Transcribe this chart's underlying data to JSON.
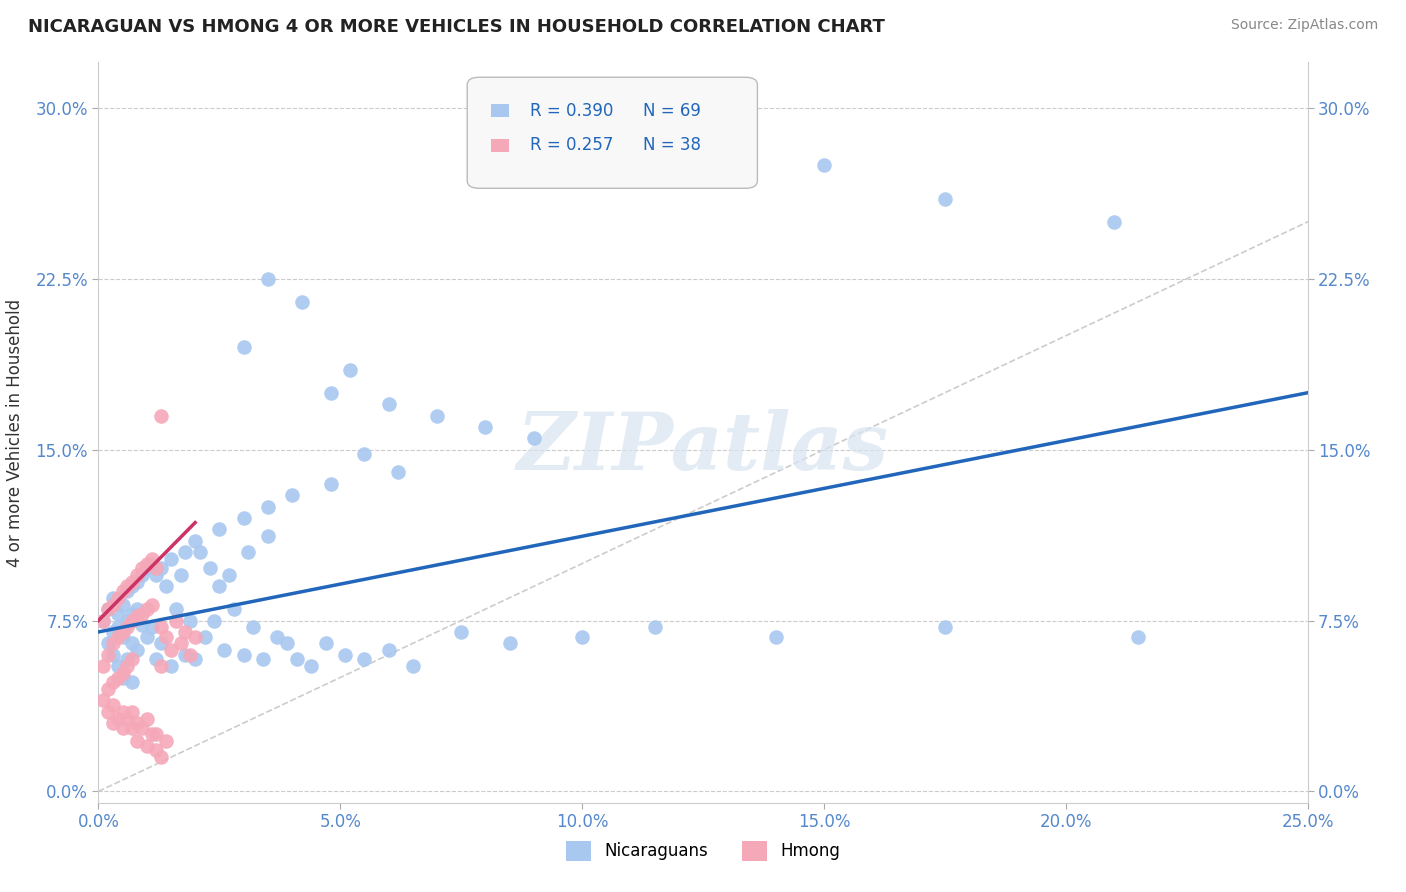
{
  "title": "NICARAGUAN VS HMONG 4 OR MORE VEHICLES IN HOUSEHOLD CORRELATION CHART",
  "source": "Source: ZipAtlas.com",
  "ylabel": "4 or more Vehicles in Household",
  "xlim": [
    0.0,
    0.25
  ],
  "ylim": [
    -0.005,
    0.32
  ],
  "xticks": [
    0.0,
    0.05,
    0.1,
    0.15,
    0.2,
    0.25
  ],
  "xticklabels": [
    "0.0%",
    "5.0%",
    "10.0%",
    "15.0%",
    "20.0%",
    "25.0%"
  ],
  "yticks": [
    0.0,
    0.075,
    0.15,
    0.225,
    0.3
  ],
  "yticklabels": [
    "0.0%",
    "7.5%",
    "15.0%",
    "22.5%",
    "30.0%"
  ],
  "nicaraguan_color": "#a8c8f0",
  "hmong_color": "#f5a8b8",
  "trendline_nicaraguan_color": "#2266bb",
  "trendline_hmong_color": "#cc3366",
  "watermark_color": "#d8e4f0",
  "watermark": "ZIPatlas",
  "background_color": "#ffffff",
  "grid_color": "#cccccc",
  "nicaraguan_x": [
    0.001,
    0.002,
    0.002,
    0.003,
    0.003,
    0.003,
    0.004,
    0.004,
    0.004,
    0.005,
    0.005,
    0.005,
    0.006,
    0.006,
    0.006,
    0.007,
    0.007,
    0.007,
    0.007,
    0.008,
    0.008,
    0.008,
    0.009,
    0.009,
    0.01,
    0.01,
    0.011,
    0.011,
    0.012,
    0.012,
    0.013,
    0.013,
    0.014,
    0.015,
    0.015,
    0.016,
    0.017,
    0.018,
    0.019,
    0.02,
    0.021,
    0.022,
    0.023,
    0.024,
    0.025,
    0.026,
    0.027,
    0.028,
    0.03,
    0.031,
    0.032,
    0.034,
    0.035,
    0.037,
    0.039,
    0.041,
    0.044,
    0.047,
    0.051,
    0.055,
    0.06,
    0.065,
    0.075,
    0.085,
    0.1,
    0.115,
    0.14,
    0.175,
    0.215
  ],
  "nicaraguan_y": [
    0.075,
    0.08,
    0.065,
    0.085,
    0.07,
    0.06,
    0.078,
    0.072,
    0.055,
    0.082,
    0.068,
    0.05,
    0.088,
    0.075,
    0.058,
    0.09,
    0.078,
    0.065,
    0.048,
    0.092,
    0.08,
    0.062,
    0.095,
    0.073,
    0.098,
    0.068,
    0.1,
    0.072,
    0.095,
    0.058,
    0.098,
    0.065,
    0.09,
    0.055,
    0.102,
    0.08,
    0.095,
    0.06,
    0.075,
    0.058,
    0.105,
    0.068,
    0.098,
    0.075,
    0.09,
    0.062,
    0.095,
    0.08,
    0.06,
    0.105,
    0.072,
    0.058,
    0.112,
    0.068,
    0.065,
    0.058,
    0.055,
    0.065,
    0.06,
    0.058,
    0.062,
    0.055,
    0.07,
    0.065,
    0.068,
    0.072,
    0.068,
    0.072,
    0.068
  ],
  "nicaraguan_y_outliers": [
    0.225,
    0.215,
    0.195,
    0.185,
    0.17,
    0.165,
    0.175,
    0.16,
    0.155,
    0.148,
    0.14,
    0.135,
    0.13,
    0.125,
    0.12,
    0.115,
    0.11,
    0.105,
    0.275,
    0.26,
    0.25
  ],
  "nicaraguan_x_outliers": [
    0.035,
    0.042,
    0.03,
    0.052,
    0.06,
    0.07,
    0.048,
    0.08,
    0.09,
    0.055,
    0.062,
    0.048,
    0.04,
    0.035,
    0.03,
    0.025,
    0.02,
    0.018,
    0.15,
    0.175,
    0.21
  ],
  "hmong_x": [
    0.001,
    0.001,
    0.002,
    0.002,
    0.002,
    0.003,
    0.003,
    0.003,
    0.004,
    0.004,
    0.004,
    0.005,
    0.005,
    0.005,
    0.006,
    0.006,
    0.006,
    0.007,
    0.007,
    0.007,
    0.008,
    0.008,
    0.009,
    0.009,
    0.01,
    0.01,
    0.011,
    0.011,
    0.012,
    0.013,
    0.013,
    0.014,
    0.015,
    0.016,
    0.017,
    0.018,
    0.019,
    0.02
  ],
  "hmong_y": [
    0.075,
    0.055,
    0.08,
    0.06,
    0.045,
    0.082,
    0.065,
    0.048,
    0.085,
    0.068,
    0.05,
    0.088,
    0.07,
    0.052,
    0.09,
    0.072,
    0.055,
    0.092,
    0.075,
    0.058,
    0.095,
    0.077,
    0.098,
    0.078,
    0.1,
    0.08,
    0.102,
    0.082,
    0.098,
    0.072,
    0.055,
    0.068,
    0.062,
    0.075,
    0.065,
    0.07,
    0.06,
    0.068
  ],
  "hmong_y_special": [
    0.165
  ],
  "hmong_x_special": [
    0.013
  ],
  "hmong_below_x": [
    0.001,
    0.002,
    0.003,
    0.003,
    0.004,
    0.005,
    0.005,
    0.006,
    0.007,
    0.007,
    0.008,
    0.008,
    0.009,
    0.01,
    0.01,
    0.011,
    0.012,
    0.012,
    0.013,
    0.014
  ],
  "hmong_below_y": [
    0.04,
    0.035,
    0.038,
    0.03,
    0.032,
    0.035,
    0.028,
    0.032,
    0.035,
    0.028,
    0.03,
    0.022,
    0.028,
    0.032,
    0.02,
    0.025,
    0.018,
    0.025,
    0.015,
    0.022
  ]
}
